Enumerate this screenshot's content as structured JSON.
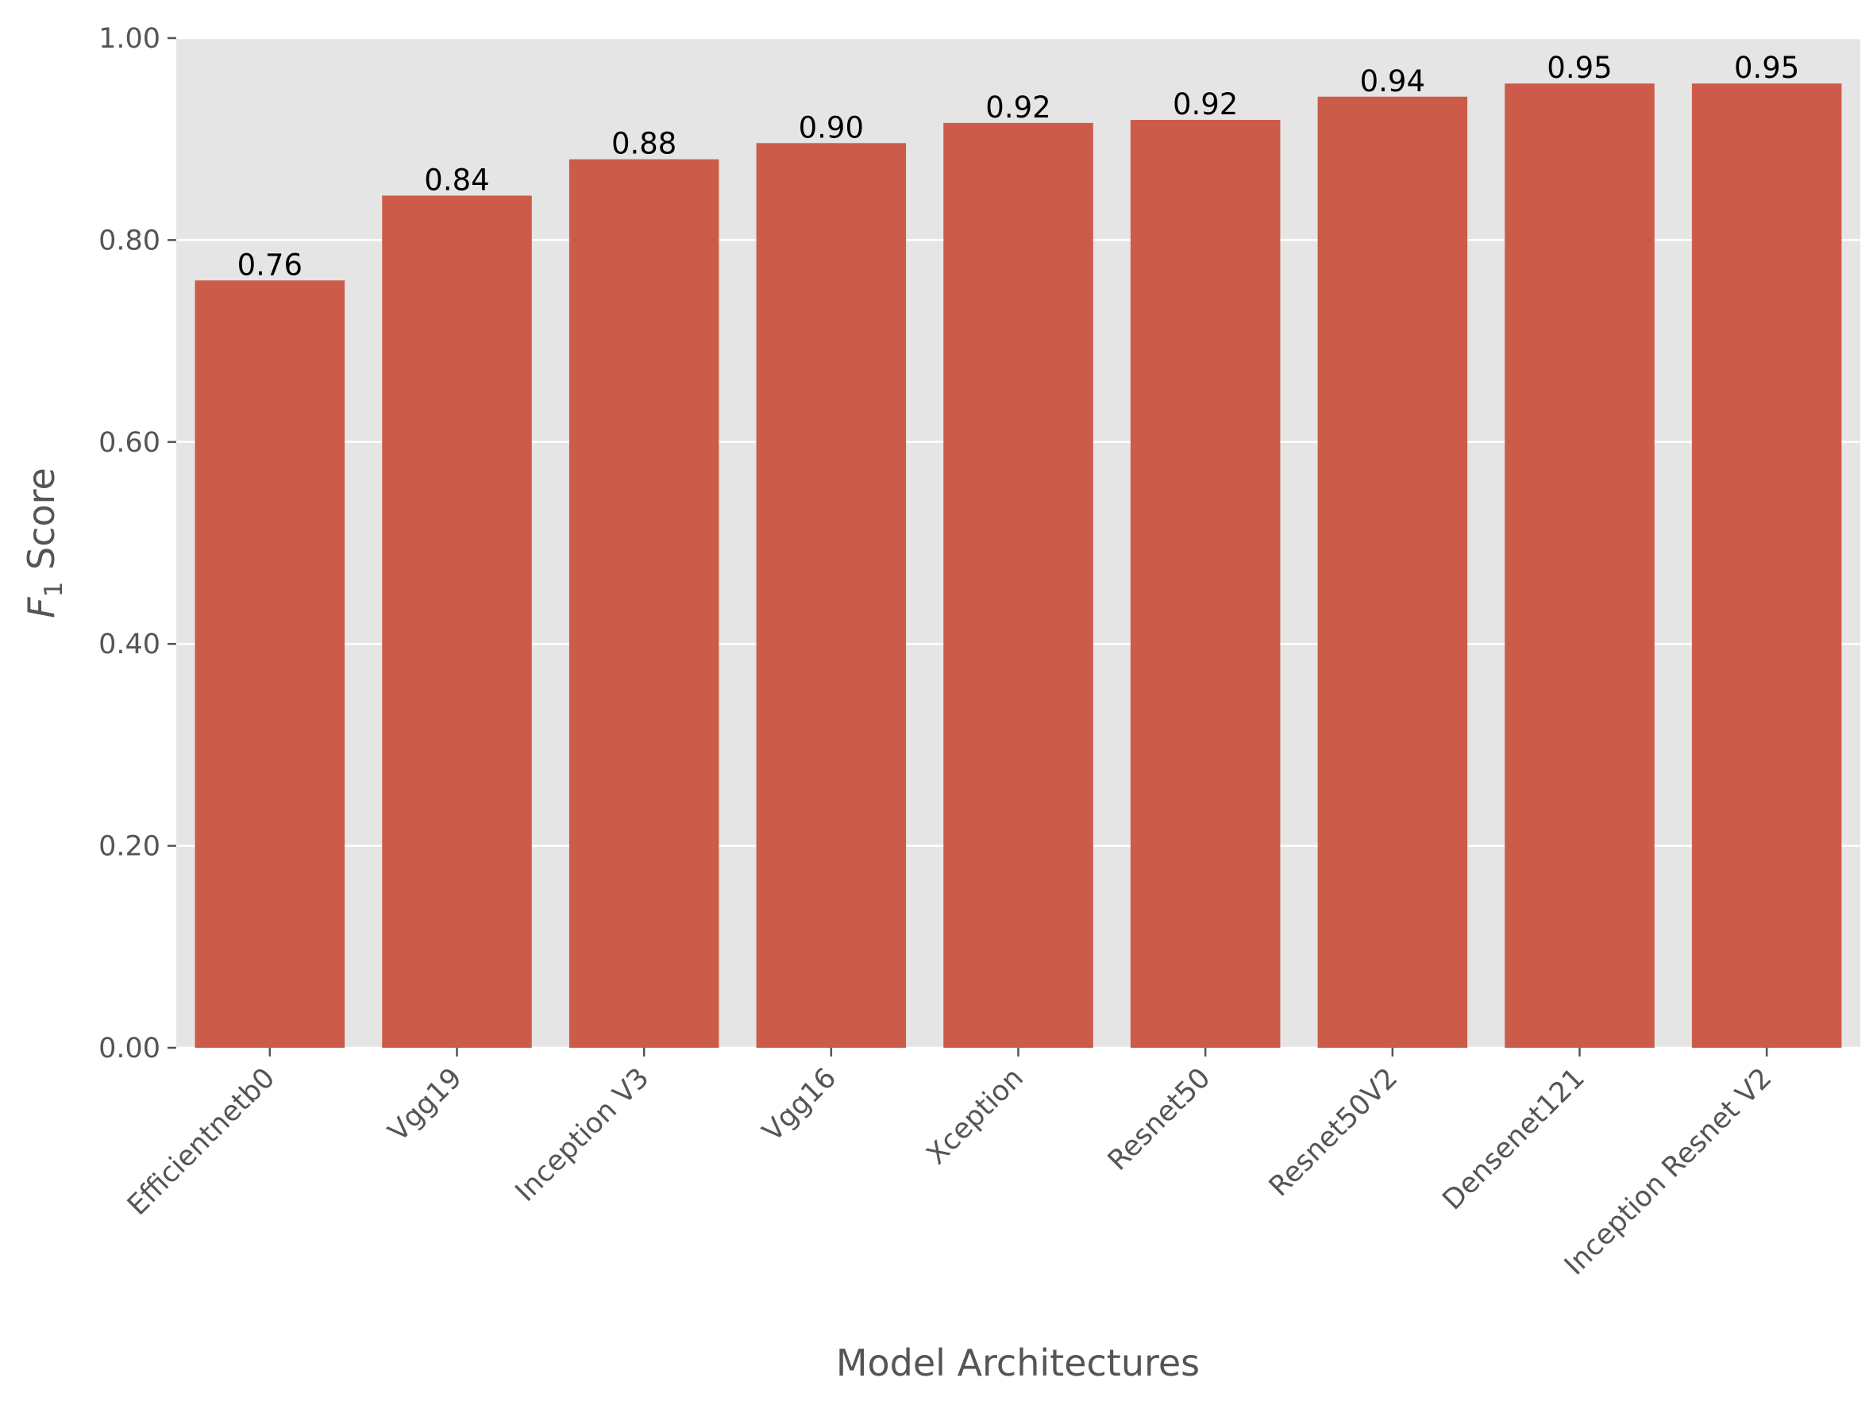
{
  "chart_data": {
    "type": "bar",
    "categories": [
      "Efficientnetb0",
      "Vgg19",
      "Inception V3",
      "Vgg16",
      "Xception",
      "Resnet50",
      "Resnet50V2",
      "Densenet121",
      "Inception Resnet V2"
    ],
    "values": [
      0.76,
      0.844,
      0.88,
      0.896,
      0.916,
      0.919,
      0.942,
      0.955,
      0.955
    ],
    "value_labels": [
      "0.76",
      "0.84",
      "0.88",
      "0.90",
      "0.92",
      "0.92",
      "0.94",
      "0.95",
      "0.95"
    ],
    "title": "",
    "xlabel": "Model Architectures",
    "ylabel_var": "F",
    "ylabel_sub": "1",
    "ylabel_rest": " Score",
    "ylim": [
      0,
      1.0
    ],
    "yticks": [
      0.0,
      0.2,
      0.4,
      0.6,
      0.8,
      1.0
    ],
    "ytick_labels": [
      "0.00",
      "0.20",
      "0.40",
      "0.60",
      "0.80",
      "1.00"
    ],
    "grid": true,
    "colors": {
      "bar": "#cd5b49",
      "plot_background": "#e5e5e5",
      "gridline": "#ffffff",
      "tick": "#555555",
      "data_label": "#000000"
    }
  }
}
